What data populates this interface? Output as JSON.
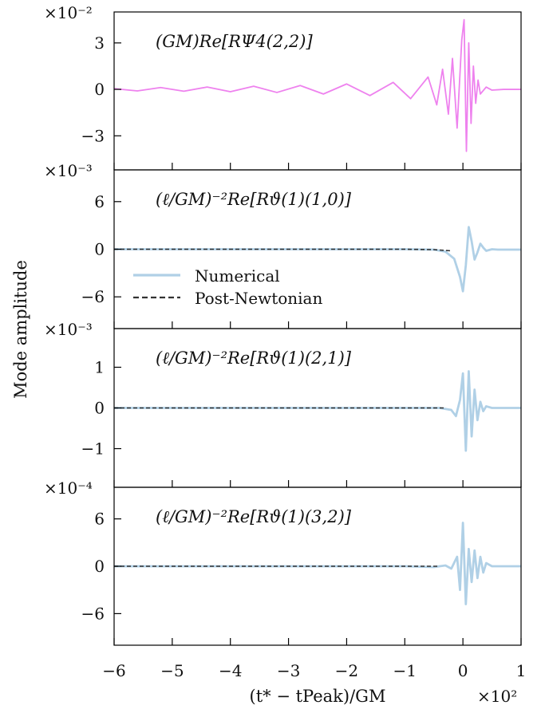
{
  "figure": {
    "ylabel": "Mode amplitude",
    "xlabel": "(t* − tPeak)/GM",
    "x_offset_label": "×10²",
    "xlim": [
      -6,
      1
    ],
    "xticks": [
      -6,
      -5,
      -4,
      -3,
      -2,
      -1,
      0,
      1
    ],
    "colors": {
      "psi4": "#ee82ee",
      "numerical": "#b0d0e6",
      "post_newtonian": "#333333",
      "axes": "#000000"
    }
  },
  "legend": {
    "items": [
      {
        "label": "Numerical",
        "style": "solid",
        "color": "#b0d0e6"
      },
      {
        "label": "Post-Newtonian",
        "style": "dashed",
        "color": "#333333"
      }
    ]
  },
  "chart_data": [
    {
      "type": "line",
      "title": "(GM)Re[RΨ4(2,2)]",
      "offset_label": "×10⁻²",
      "ylim": [
        -5.2,
        5.0
      ],
      "yticks": [
        -3,
        0,
        3
      ],
      "ytick_labels": [
        "−3",
        "0",
        "3"
      ],
      "series": [
        {
          "kind": "psi4",
          "style": "solid",
          "color": "#ee82ee",
          "x": [
            -6.0,
            -5.6,
            -5.2,
            -4.8,
            -4.4,
            -4.0,
            -3.6,
            -3.2,
            -2.8,
            -2.4,
            -2.0,
            -1.6,
            -1.2,
            -0.9,
            -0.6,
            -0.45,
            -0.35,
            -0.25,
            -0.18,
            -0.1,
            -0.02,
            0.02,
            0.06,
            0.1,
            0.14,
            0.18,
            0.22,
            0.26,
            0.3,
            0.4,
            0.5,
            0.7,
            1.0
          ],
          "y": [
            0.05,
            -0.1,
            0.12,
            -0.12,
            0.15,
            -0.15,
            0.2,
            -0.2,
            0.25,
            -0.3,
            0.35,
            -0.4,
            0.45,
            -0.6,
            0.8,
            -1.0,
            1.3,
            -1.6,
            2.0,
            -2.5,
            3.2,
            4.5,
            -4.0,
            3.0,
            -2.2,
            1.5,
            -0.9,
            0.6,
            -0.3,
            0.15,
            -0.05,
            0.0,
            0.0
          ]
        }
      ]
    },
    {
      "type": "line",
      "title": "(ℓ/GM)⁻²Re[Rϑ(1)(1,0)]",
      "offset_label": "×10⁻³",
      "ylim": [
        -10,
        10
      ],
      "yticks": [
        -6,
        0,
        6
      ],
      "ytick_labels": [
        "−6",
        "0",
        "6"
      ],
      "series": [
        {
          "kind": "numerical",
          "style": "solid",
          "color": "#b0d0e6",
          "x": [
            -6.0,
            -1.0,
            -0.5,
            -0.3,
            -0.15,
            -0.05,
            0.0,
            0.05,
            0.1,
            0.15,
            0.2,
            0.25,
            0.3,
            0.35,
            0.4,
            0.5,
            0.6,
            1.0
          ],
          "y": [
            0.0,
            0.0,
            -0.05,
            -0.3,
            -1.2,
            -3.5,
            -5.3,
            -2.0,
            2.8,
            1.0,
            -1.3,
            -0.4,
            0.7,
            0.2,
            -0.2,
            0.0,
            -0.05,
            -0.05
          ]
        },
        {
          "kind": "post_newtonian",
          "style": "dashed",
          "color": "#333333",
          "x": [
            -6.0,
            -1.0,
            -0.5,
            -0.2
          ],
          "y": [
            0.0,
            0.0,
            -0.05,
            -0.2
          ]
        }
      ]
    },
    {
      "type": "line",
      "title": "(ℓ/GM)⁻²Re[Rϑ(1)(2,1)]",
      "offset_label": "×10⁻³",
      "ylim": [
        -1.95,
        1.95
      ],
      "yticks": [
        -1,
        0,
        1
      ],
      "ytick_labels": [
        "−1",
        "0",
        "1"
      ],
      "series": [
        {
          "kind": "numerical",
          "style": "solid",
          "color": "#b0d0e6",
          "x": [
            -6.0,
            -1.0,
            -0.4,
            -0.2,
            -0.12,
            -0.05,
            0.0,
            0.05,
            0.1,
            0.15,
            0.2,
            0.25,
            0.3,
            0.35,
            0.4,
            0.5,
            0.7,
            1.0
          ],
          "y": [
            0.0,
            0.0,
            0.0,
            -0.05,
            -0.2,
            0.2,
            0.85,
            -1.05,
            0.9,
            -0.7,
            0.45,
            -0.3,
            0.15,
            -0.08,
            0.04,
            0.0,
            0.0,
            0.0
          ]
        },
        {
          "kind": "post_newtonian",
          "style": "dashed",
          "color": "#333333",
          "x": [
            -6.0,
            -1.0,
            -0.3
          ],
          "y": [
            0.0,
            0.0,
            0.0
          ]
        }
      ]
    },
    {
      "type": "line",
      "title": "(ℓ/GM)⁻²Re[Rϑ(1)(3,2)]",
      "offset_label": "×10⁻⁴",
      "ylim": [
        -10,
        10
      ],
      "yticks": [
        -6,
        0,
        6
      ],
      "ytick_labels": [
        "−6",
        "0",
        "6"
      ],
      "series": [
        {
          "kind": "numerical",
          "style": "solid",
          "color": "#b0d0e6",
          "x": [
            -6.0,
            -1.0,
            -0.5,
            -0.3,
            -0.2,
            -0.1,
            -0.05,
            0.0,
            0.05,
            0.1,
            0.15,
            0.2,
            0.25,
            0.3,
            0.35,
            0.4,
            0.5,
            0.7,
            1.0
          ],
          "y": [
            0.0,
            0.0,
            -0.1,
            0.1,
            -0.3,
            1.2,
            -3.0,
            5.5,
            -4.8,
            2.2,
            -2.0,
            2.0,
            -1.5,
            1.2,
            -0.8,
            0.4,
            0.0,
            0.0,
            0.0
          ]
        },
        {
          "kind": "post_newtonian",
          "style": "dashed",
          "color": "#333333",
          "x": [
            -6.0,
            -1.0,
            -0.4
          ],
          "y": [
            0.0,
            0.0,
            0.0
          ]
        }
      ]
    }
  ]
}
